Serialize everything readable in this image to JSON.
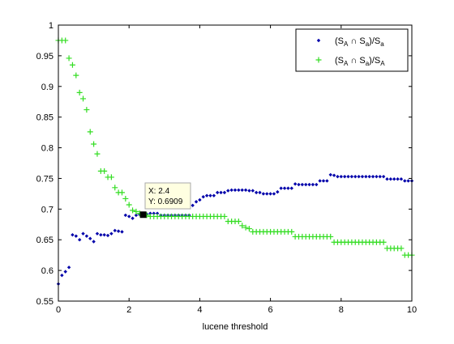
{
  "chart_data": {
    "type": "scatter",
    "xlabel": "lucene threshold",
    "ylabel": "",
    "title": "",
    "xlim": [
      0,
      10
    ],
    "ylim": [
      0.55,
      1
    ],
    "xticks": [
      0,
      2,
      4,
      6,
      8,
      10
    ],
    "yticks": [
      0.55,
      0.6,
      0.65,
      0.7,
      0.75,
      0.8,
      0.85,
      0.9,
      0.95,
      1
    ],
    "xtick_labels": [
      "0",
      "2",
      "4",
      "6",
      "8",
      "10"
    ],
    "ytick_labels": [
      "0.55",
      "0.6",
      "0.65",
      "0.7",
      "0.75",
      "0.8",
      "0.85",
      "0.9",
      "0.95",
      "1"
    ],
    "grid": false,
    "legend_position": "top-right",
    "series": [
      {
        "marker": "dot",
        "color": "#0000aa",
        "legend_main": "(S",
        "legend_sub1": "A",
        "legend_mid": " ∩ S",
        "legend_sub2": "a",
        "legend_end": ")/S",
        "legend_sub3": "a",
        "points": [
          [
            0.0,
            0.578
          ],
          [
            0.1,
            0.592
          ],
          [
            0.2,
            0.598
          ],
          [
            0.3,
            0.605
          ],
          [
            0.4,
            0.658
          ],
          [
            0.5,
            0.656
          ],
          [
            0.6,
            0.65
          ],
          [
            0.7,
            0.66
          ],
          [
            0.8,
            0.656
          ],
          [
            0.9,
            0.652
          ],
          [
            1.0,
            0.647
          ],
          [
            1.1,
            0.66
          ],
          [
            1.2,
            0.658
          ],
          [
            1.3,
            0.658
          ],
          [
            1.4,
            0.657
          ],
          [
            1.5,
            0.66
          ],
          [
            1.6,
            0.665
          ],
          [
            1.7,
            0.664
          ],
          [
            1.8,
            0.663
          ],
          [
            1.9,
            0.69
          ],
          [
            2.0,
            0.688
          ],
          [
            2.1,
            0.685
          ],
          [
            2.2,
            0.69
          ],
          [
            2.3,
            0.691
          ],
          [
            2.4,
            0.6909
          ],
          [
            2.5,
            0.692
          ],
          [
            2.6,
            0.693
          ],
          [
            2.7,
            0.693
          ],
          [
            2.8,
            0.693
          ],
          [
            2.9,
            0.69
          ],
          [
            3.0,
            0.69
          ],
          [
            3.1,
            0.69
          ],
          [
            3.2,
            0.69
          ],
          [
            3.3,
            0.69
          ],
          [
            3.4,
            0.69
          ],
          [
            3.5,
            0.69
          ],
          [
            3.6,
            0.69
          ],
          [
            3.7,
            0.69
          ],
          [
            3.8,
            0.706
          ],
          [
            3.9,
            0.712
          ],
          [
            4.0,
            0.715
          ],
          [
            4.1,
            0.72
          ],
          [
            4.2,
            0.722
          ],
          [
            4.3,
            0.722
          ],
          [
            4.4,
            0.722
          ],
          [
            4.5,
            0.727
          ],
          [
            4.6,
            0.727
          ],
          [
            4.7,
            0.727
          ],
          [
            4.8,
            0.73
          ],
          [
            4.9,
            0.731
          ],
          [
            5.0,
            0.731
          ],
          [
            5.1,
            0.731
          ],
          [
            5.2,
            0.731
          ],
          [
            5.3,
            0.731
          ],
          [
            5.4,
            0.73
          ],
          [
            5.5,
            0.73
          ],
          [
            5.6,
            0.727
          ],
          [
            5.7,
            0.727
          ],
          [
            5.8,
            0.725
          ],
          [
            5.9,
            0.725
          ],
          [
            6.0,
            0.725
          ],
          [
            6.1,
            0.725
          ],
          [
            6.2,
            0.728
          ],
          [
            6.3,
            0.734
          ],
          [
            6.4,
            0.734
          ],
          [
            6.5,
            0.734
          ],
          [
            6.6,
            0.734
          ],
          [
            6.7,
            0.741
          ],
          [
            6.8,
            0.74
          ],
          [
            6.9,
            0.74
          ],
          [
            7.0,
            0.74
          ],
          [
            7.1,
            0.74
          ],
          [
            7.2,
            0.74
          ],
          [
            7.3,
            0.74
          ],
          [
            7.4,
            0.746
          ],
          [
            7.5,
            0.746
          ],
          [
            7.6,
            0.746
          ],
          [
            7.7,
            0.756
          ],
          [
            7.8,
            0.755
          ],
          [
            7.9,
            0.753
          ],
          [
            8.0,
            0.753
          ],
          [
            8.1,
            0.753
          ],
          [
            8.2,
            0.753
          ],
          [
            8.3,
            0.753
          ],
          [
            8.4,
            0.753
          ],
          [
            8.5,
            0.753
          ],
          [
            8.6,
            0.753
          ],
          [
            8.7,
            0.753
          ],
          [
            8.8,
            0.753
          ],
          [
            8.9,
            0.753
          ],
          [
            9.0,
            0.753
          ],
          [
            9.1,
            0.753
          ],
          [
            9.2,
            0.753
          ],
          [
            9.3,
            0.749
          ],
          [
            9.4,
            0.749
          ],
          [
            9.5,
            0.749
          ],
          [
            9.6,
            0.749
          ],
          [
            9.7,
            0.749
          ],
          [
            9.8,
            0.746
          ],
          [
            9.9,
            0.746
          ],
          [
            10.0,
            0.746
          ]
        ]
      },
      {
        "marker": "plus",
        "color": "#33dd22",
        "legend_main": "(S",
        "legend_sub1": "A",
        "legend_mid": " ∩ S",
        "legend_sub2": "a",
        "legend_end": ")/S",
        "legend_sub3": "A",
        "points": [
          [
            0.0,
            0.975
          ],
          [
            0.1,
            0.975
          ],
          [
            0.2,
            0.975
          ],
          [
            0.3,
            0.946
          ],
          [
            0.4,
            0.935
          ],
          [
            0.5,
            0.918
          ],
          [
            0.6,
            0.89
          ],
          [
            0.7,
            0.88
          ],
          [
            0.8,
            0.862
          ],
          [
            0.9,
            0.826
          ],
          [
            1.0,
            0.806
          ],
          [
            1.1,
            0.79
          ],
          [
            1.2,
            0.762
          ],
          [
            1.3,
            0.762
          ],
          [
            1.4,
            0.752
          ],
          [
            1.5,
            0.752
          ],
          [
            1.6,
            0.735
          ],
          [
            1.7,
            0.727
          ],
          [
            1.8,
            0.727
          ],
          [
            1.9,
            0.717
          ],
          [
            2.0,
            0.707
          ],
          [
            2.1,
            0.698
          ],
          [
            2.2,
            0.696
          ],
          [
            2.3,
            0.693
          ],
          [
            2.4,
            0.6909
          ],
          [
            2.5,
            0.69
          ],
          [
            2.6,
            0.688
          ],
          [
            2.7,
            0.688
          ],
          [
            2.8,
            0.688
          ],
          [
            2.9,
            0.688
          ],
          [
            3.0,
            0.688
          ],
          [
            3.1,
            0.688
          ],
          [
            3.2,
            0.688
          ],
          [
            3.3,
            0.688
          ],
          [
            3.4,
            0.688
          ],
          [
            3.5,
            0.688
          ],
          [
            3.6,
            0.688
          ],
          [
            3.7,
            0.688
          ],
          [
            3.8,
            0.688
          ],
          [
            3.9,
            0.688
          ],
          [
            4.0,
            0.688
          ],
          [
            4.1,
            0.688
          ],
          [
            4.2,
            0.688
          ],
          [
            4.3,
            0.688
          ],
          [
            4.4,
            0.688
          ],
          [
            4.5,
            0.688
          ],
          [
            4.6,
            0.688
          ],
          [
            4.7,
            0.688
          ],
          [
            4.8,
            0.68
          ],
          [
            4.9,
            0.68
          ],
          [
            5.0,
            0.68
          ],
          [
            5.1,
            0.68
          ],
          [
            5.2,
            0.673
          ],
          [
            5.3,
            0.67
          ],
          [
            5.4,
            0.668
          ],
          [
            5.5,
            0.663
          ],
          [
            5.6,
            0.663
          ],
          [
            5.7,
            0.663
          ],
          [
            5.8,
            0.663
          ],
          [
            5.9,
            0.663
          ],
          [
            6.0,
            0.663
          ],
          [
            6.1,
            0.663
          ],
          [
            6.2,
            0.663
          ],
          [
            6.3,
            0.663
          ],
          [
            6.4,
            0.663
          ],
          [
            6.5,
            0.663
          ],
          [
            6.6,
            0.663
          ],
          [
            6.7,
            0.655
          ],
          [
            6.8,
            0.655
          ],
          [
            6.9,
            0.655
          ],
          [
            7.0,
            0.655
          ],
          [
            7.1,
            0.655
          ],
          [
            7.2,
            0.655
          ],
          [
            7.3,
            0.655
          ],
          [
            7.4,
            0.655
          ],
          [
            7.5,
            0.655
          ],
          [
            7.6,
            0.655
          ],
          [
            7.7,
            0.655
          ],
          [
            7.8,
            0.646
          ],
          [
            7.9,
            0.646
          ],
          [
            8.0,
            0.646
          ],
          [
            8.1,
            0.646
          ],
          [
            8.2,
            0.646
          ],
          [
            8.3,
            0.646
          ],
          [
            8.4,
            0.646
          ],
          [
            8.5,
            0.646
          ],
          [
            8.6,
            0.646
          ],
          [
            8.7,
            0.646
          ],
          [
            8.8,
            0.646
          ],
          [
            8.9,
            0.646
          ],
          [
            9.0,
            0.646
          ],
          [
            9.1,
            0.646
          ],
          [
            9.2,
            0.646
          ],
          [
            9.3,
            0.636
          ],
          [
            9.4,
            0.636
          ],
          [
            9.5,
            0.636
          ],
          [
            9.6,
            0.636
          ],
          [
            9.7,
            0.636
          ],
          [
            9.8,
            0.625
          ],
          [
            9.9,
            0.625
          ],
          [
            10.0,
            0.625
          ]
        ]
      }
    ],
    "datatip": {
      "x": 2.4,
      "y": 0.6909,
      "line1": "X: 2.4",
      "line2": "Y: 0.6909"
    }
  }
}
